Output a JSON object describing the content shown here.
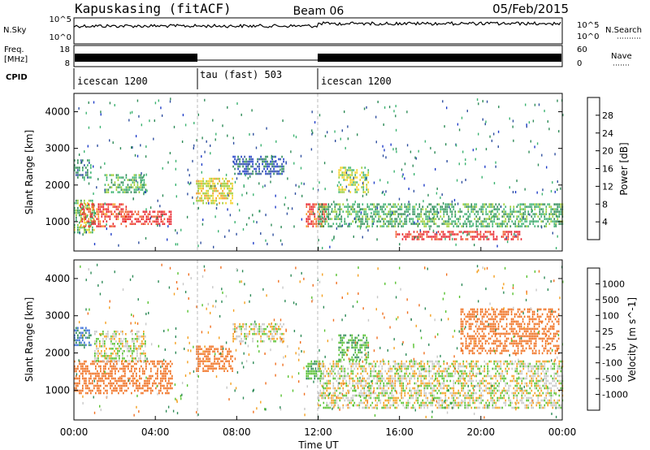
{
  "header": {
    "station": "Kapuskasing (fitACF)",
    "beam": "Beam 06",
    "date": "05/Feb/2015"
  },
  "noise_panel": {
    "left_label": "N.Sky",
    "right_label": "N.Search",
    "left_ticks": [
      "10^5",
      "10^0"
    ],
    "right_ticks": [
      "10^5",
      "10^0"
    ]
  },
  "freq_panel": {
    "left_label_1": "Freq.",
    "left_label_2": "[MHz]",
    "right_label": "Nave",
    "left_ticks": [
      "18",
      "8"
    ],
    "right_ticks": [
      "60",
      "0"
    ]
  },
  "cpid_panel": {
    "label": "CPID",
    "segments": [
      {
        "name": "icescan 1200",
        "start_hour": 0,
        "end_hour": 6
      },
      {
        "name": "tau (fast) 503",
        "start_hour": 6,
        "end_hour": 12
      },
      {
        "name": "icescan 1200",
        "start_hour": 12,
        "end_hour": 24
      }
    ]
  },
  "axes": {
    "y_label": "Slant Range [km]",
    "x_label": "Time UT",
    "x_ticks": [
      "00:00",
      "04:00",
      "08:00",
      "12:00",
      "16:00",
      "20:00",
      "00:00"
    ],
    "y_ticks": [
      "1000",
      "2000",
      "3000",
      "4000"
    ]
  },
  "power_colorbar": {
    "label": "Power [dB]",
    "ticks": [
      "28",
      "24",
      "20",
      "16",
      "12",
      "8",
      "4"
    ],
    "colors": [
      "#e8202a",
      "#f05a28",
      "#f49a1e",
      "#f5d020",
      "#9acd32",
      "#3cb371",
      "#2e8b57",
      "#2f4f9f",
      "#1e3cc8",
      "#2020ff"
    ]
  },
  "velocity_colorbar": {
    "label": "Velocity [m s^-1]",
    "ticks": [
      "1000",
      "500",
      "100",
      "25",
      "-25",
      "-100",
      "-500",
      "-1000"
    ],
    "colors": [
      "#2040c0",
      "#3a6fd8",
      "#2e8b57",
      "#57c230",
      "#c8c8c8",
      "#c8c8c8",
      "#f4a020",
      "#f07020",
      "#e8402a",
      "#e81010"
    ]
  },
  "chart_data": [
    {
      "type": "heatmap",
      "title": "Power",
      "x_range_hours": [
        0,
        24
      ],
      "ylim": [
        200,
        4500
      ],
      "unit": "dB",
      "regions": [
        {
          "t": [
            0.0,
            1.0
          ],
          "r": [
            700,
            1600
          ],
          "value": 14
        },
        {
          "t": [
            0.3,
            2.6
          ],
          "r": [
            900,
            1500
          ],
          "value": 26
        },
        {
          "t": [
            2.5,
            4.8
          ],
          "r": [
            950,
            1300
          ],
          "value": 28
        },
        {
          "t": [
            0.0,
            0.8
          ],
          "r": [
            2200,
            2700
          ],
          "value": 10
        },
        {
          "t": [
            1.5,
            3.5
          ],
          "r": [
            1800,
            2300
          ],
          "value": 12
        },
        {
          "t": [
            6.0,
            7.8
          ],
          "r": [
            1500,
            2200
          ],
          "value": 18
        },
        {
          "t": [
            7.8,
            10.3
          ],
          "r": [
            2300,
            2800
          ],
          "value": 6
        },
        {
          "t": [
            11.4,
            12.4
          ],
          "r": [
            900,
            1500
          ],
          "value": 26
        },
        {
          "t": [
            12.0,
            24.0
          ],
          "r": [
            900,
            1500
          ],
          "value": 12
        },
        {
          "t": [
            15.8,
            22.0
          ],
          "r": [
            500,
            750
          ],
          "value": 28
        },
        {
          "t": [
            13.0,
            14.5
          ],
          "r": [
            1800,
            2500
          ],
          "value": 16
        }
      ]
    },
    {
      "type": "heatmap",
      "title": "Velocity",
      "x_range_hours": [
        0,
        24
      ],
      "ylim": [
        200,
        4500
      ],
      "unit": "m s^-1",
      "regions": [
        {
          "t": [
            0.0,
            4.8
          ],
          "r": [
            900,
            1800
          ],
          "value": -200
        },
        {
          "t": [
            0.0,
            0.8
          ],
          "r": [
            2200,
            2700
          ],
          "value": 300
        },
        {
          "t": [
            1.0,
            3.5
          ],
          "r": [
            1800,
            2600
          ],
          "value": 0
        },
        {
          "t": [
            6.0,
            7.8
          ],
          "r": [
            1500,
            2200
          ],
          "value": -150
        },
        {
          "t": [
            7.8,
            10.3
          ],
          "r": [
            2300,
            2800
          ],
          "value": 0
        },
        {
          "t": [
            11.4,
            12.2
          ],
          "r": [
            1300,
            1800
          ],
          "value": 80
        },
        {
          "t": [
            12.0,
            24.0
          ],
          "r": [
            500,
            1800
          ],
          "value": 0
        },
        {
          "t": [
            13.0,
            14.5
          ],
          "r": [
            1800,
            2500
          ],
          "value": 80
        },
        {
          "t": [
            19.0,
            23.8
          ],
          "r": [
            2000,
            3200
          ],
          "value": -200
        }
      ]
    }
  ]
}
